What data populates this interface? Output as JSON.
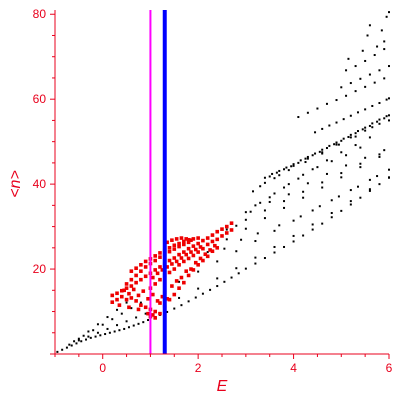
{
  "chart_data": {
    "type": "scatter",
    "xlabel": "E",
    "ylabel": "<n>",
    "xlim": [
      -1,
      6
    ],
    "ylim": [
      0,
      81
    ],
    "x_ticks": [
      "0",
      "2",
      "4",
      "6"
    ],
    "y_ticks": [
      "20",
      "40",
      "60",
      "80"
    ],
    "grid": false,
    "colors": {
      "axis": "#e8001c",
      "black_points": "#000000",
      "red_points": "#ee0000",
      "magenta_line": "#ff00ff",
      "blue_line": "#0000ff"
    },
    "vertical_lines": [
      {
        "x": 1.0,
        "color": "#ff00ff"
      },
      {
        "x": 1.3,
        "color": "#0000ff"
      }
    ],
    "black_series": [
      [
        -0.95,
        0.5
      ],
      [
        -0.85,
        1.0
      ],
      [
        -0.75,
        1.5
      ],
      [
        -0.65,
        2.0
      ],
      [
        -0.55,
        2.5
      ],
      [
        -0.45,
        3.0
      ],
      [
        -0.35,
        3.4
      ],
      [
        -0.25,
        3.8
      ],
      [
        -0.15,
        4.1
      ],
      [
        -0.05,
        4.4
      ],
      [
        0.05,
        4.7
      ],
      [
        0.15,
        5.0
      ],
      [
        0.25,
        5.3
      ],
      [
        0.35,
        5.6
      ],
      [
        0.45,
        5.9
      ],
      [
        0.55,
        6.3
      ],
      [
        0.65,
        6.7
      ],
      [
        0.75,
        7.1
      ],
      [
        0.85,
        7.5
      ],
      [
        0.95,
        8.0
      ],
      [
        1.1,
        8.7
      ],
      [
        1.2,
        9.2
      ],
      [
        1.35,
        9.9
      ],
      [
        1.5,
        10.7
      ],
      [
        1.65,
        11.5
      ],
      [
        1.8,
        12.4
      ],
      [
        1.95,
        13.3
      ],
      [
        2.1,
        14.2
      ],
      [
        2.25,
        15.1
      ],
      [
        2.4,
        16.0
      ],
      [
        2.55,
        17.0
      ],
      [
        2.7,
        18.0
      ],
      [
        2.85,
        19.0
      ],
      [
        3.0,
        20.1
      ],
      [
        3.2,
        21.3
      ],
      [
        3.4,
        22.6
      ],
      [
        3.6,
        23.9
      ],
      [
        3.8,
        25.2
      ],
      [
        4.0,
        26.5
      ],
      [
        4.2,
        27.9
      ],
      [
        4.4,
        29.3
      ],
      [
        4.6,
        30.7
      ],
      [
        4.8,
        32.2
      ],
      [
        5.0,
        33.7
      ],
      [
        5.2,
        35.2
      ],
      [
        5.4,
        36.8
      ],
      [
        5.6,
        38.4
      ],
      [
        5.8,
        40.0
      ],
      [
        6.0,
        41.5
      ],
      [
        -0.7,
        2.2
      ],
      [
        -0.5,
        3.2
      ],
      [
        -0.3,
        4.1
      ],
      [
        -0.1,
        5.0
      ],
      [
        0.1,
        5.9
      ],
      [
        0.3,
        6.8
      ],
      [
        0.5,
        7.7
      ],
      [
        0.7,
        8.6
      ],
      [
        0.9,
        9.5
      ],
      [
        1.3,
        11.5
      ],
      [
        1.6,
        13.2
      ],
      [
        2.0,
        15.4
      ],
      [
        2.4,
        17.8
      ],
      [
        2.8,
        20.2
      ],
      [
        3.2,
        22.7
      ],
      [
        3.6,
        25.2
      ],
      [
        4.0,
        27.8
      ],
      [
        4.4,
        30.5
      ],
      [
        4.8,
        33.2
      ],
      [
        5.2,
        36.0
      ],
      [
        5.6,
        38.8
      ],
      [
        6.0,
        41.6
      ],
      [
        -0.6,
        3.0
      ],
      [
        -0.4,
        4.3
      ],
      [
        -0.2,
        5.6
      ],
      [
        0.0,
        6.9
      ],
      [
        0.2,
        8.2
      ],
      [
        0.4,
        9.5
      ],
      [
        0.6,
        10.8
      ],
      [
        0.8,
        12.1
      ],
      [
        1.6,
        17.0
      ],
      [
        2.0,
        19.4
      ],
      [
        2.4,
        21.8
      ],
      [
        2.8,
        24.2
      ],
      [
        3.2,
        26.6
      ],
      [
        3.6,
        29.0
      ],
      [
        4.0,
        31.4
      ],
      [
        4.4,
        33.8
      ],
      [
        4.8,
        36.2
      ],
      [
        5.2,
        38.6
      ],
      [
        5.6,
        41.0
      ],
      [
        6.0,
        43.4
      ],
      [
        -0.5,
        3.6
      ],
      [
        -0.3,
        5.3
      ],
      [
        -0.1,
        7.0
      ],
      [
        0.1,
        8.7
      ],
      [
        0.3,
        10.4
      ],
      [
        0.5,
        12.1
      ],
      [
        2.2,
        24.0
      ],
      [
        2.6,
        27.0
      ],
      [
        3.0,
        29.5
      ],
      [
        3.4,
        32.0
      ],
      [
        3.8,
        34.4
      ],
      [
        4.2,
        36.8
      ],
      [
        4.6,
        39.2
      ],
      [
        5.0,
        41.6
      ],
      [
        5.4,
        44.0
      ],
      [
        5.8,
        46.4
      ],
      [
        2.6,
        29.3
      ],
      [
        3.0,
        31.6
      ],
      [
        3.4,
        33.8
      ],
      [
        3.8,
        36.0
      ],
      [
        4.2,
        38.2
      ],
      [
        4.6,
        40.4
      ],
      [
        5.0,
        42.6
      ],
      [
        5.4,
        44.8
      ],
      [
        5.8,
        47.0
      ],
      [
        2.8,
        30.2
      ],
      [
        3.1,
        33.5
      ],
      [
        3.5,
        35.8
      ],
      [
        3.9,
        37.6
      ],
      [
        4.3,
        40.2
      ],
      [
        4.7,
        42.4
      ],
      [
        5.1,
        44.4
      ],
      [
        5.5,
        46.2
      ],
      [
        5.9,
        48.0
      ],
      [
        3.0,
        33.4
      ],
      [
        3.3,
        35.6
      ],
      [
        3.6,
        37.8
      ],
      [
        3.9,
        40.0
      ],
      [
        4.2,
        42.2
      ],
      [
        4.5,
        44.0
      ],
      [
        4.8,
        45.4
      ],
      [
        5.1,
        46.8
      ],
      [
        5.4,
        48.6
      ],
      [
        3.2,
        35.0
      ],
      [
        3.5,
        36.9
      ],
      [
        3.8,
        39.2
      ],
      [
        4.1,
        41.3
      ],
      [
        4.4,
        43.5
      ],
      [
        4.7,
        45.6
      ],
      [
        5.0,
        47.5
      ],
      [
        5.3,
        49.2
      ],
      [
        5.6,
        51.0
      ],
      [
        2.55,
        24.8
      ],
      [
        2.9,
        26.9
      ],
      [
        3.25,
        28.4
      ],
      [
        3.7,
        30.3
      ],
      [
        4.15,
        32.4
      ],
      [
        4.55,
        34.8
      ],
      [
        4.95,
        37.1
      ],
      [
        5.35,
        39.4
      ],
      [
        5.75,
        41.9
      ],
      [
        3.15,
        38.3
      ],
      [
        3.4,
        40.3
      ],
      [
        3.7,
        42.1
      ],
      [
        4.0,
        44.3
      ],
      [
        4.3,
        46.0
      ],
      [
        4.6,
        47.5
      ],
      [
        4.9,
        49.3
      ],
      [
        5.2,
        51.0
      ],
      [
        5.5,
        52.6
      ],
      [
        5.8,
        54.2
      ],
      [
        3.3,
        39.5
      ],
      [
        3.6,
        41.4
      ],
      [
        3.9,
        43.3
      ],
      [
        4.25,
        45.2
      ],
      [
        4.6,
        47.2
      ],
      [
        4.95,
        49.3
      ],
      [
        5.3,
        51.2
      ],
      [
        5.65,
        53.4
      ],
      [
        6.0,
        55.0
      ],
      [
        3.4,
        41.5
      ],
      [
        3.55,
        42.4
      ],
      [
        3.7,
        43.1
      ],
      [
        3.85,
        43.9
      ],
      [
        4.0,
        44.7
      ],
      [
        4.15,
        45.6
      ],
      [
        4.3,
        46.4
      ],
      [
        4.45,
        47.2
      ],
      [
        4.6,
        48.1
      ],
      [
        4.75,
        49.0
      ],
      [
        4.9,
        49.8
      ],
      [
        5.05,
        50.7
      ],
      [
        5.2,
        51.6
      ],
      [
        5.35,
        52.5
      ],
      [
        5.5,
        53.3
      ],
      [
        5.65,
        54.3
      ],
      [
        5.8,
        55.2
      ],
      [
        5.95,
        56.0
      ],
      [
        4.1,
        55.8
      ],
      [
        4.3,
        56.8
      ],
      [
        4.5,
        57.8
      ],
      [
        4.7,
        58.9
      ],
      [
        4.9,
        59.8
      ],
      [
        5.1,
        60.8
      ],
      [
        5.3,
        61.9
      ],
      [
        5.5,
        62.9
      ],
      [
        5.7,
        63.9
      ],
      [
        5.9,
        64.9
      ],
      [
        5.0,
        62.8
      ],
      [
        5.2,
        63.8
      ],
      [
        5.4,
        64.8
      ],
      [
        5.6,
        65.8
      ],
      [
        5.8,
        66.8
      ],
      [
        6.0,
        67.8
      ],
      [
        5.1,
        66.8
      ],
      [
        5.3,
        67.8
      ],
      [
        5.5,
        69.0
      ],
      [
        5.7,
        70.4
      ],
      [
        5.9,
        71.8
      ],
      [
        5.15,
        69.5
      ],
      [
        5.45,
        71.4
      ],
      [
        5.75,
        72.4
      ],
      [
        5.9,
        73.6
      ],
      [
        5.55,
        75.0
      ],
      [
        5.85,
        76.2
      ],
      [
        5.6,
        77.4
      ],
      [
        5.95,
        79.4
      ],
      [
        6.0,
        80.5
      ],
      [
        3.5,
        41.8
      ],
      [
        3.65,
        42.7
      ],
      [
        3.8,
        43.5
      ],
      [
        3.95,
        44.2
      ],
      [
        4.1,
        45.0
      ],
      [
        4.25,
        46.0
      ],
      [
        4.4,
        46.8
      ],
      [
        4.55,
        47.6
      ],
      [
        4.7,
        48.5
      ],
      [
        4.85,
        49.4
      ],
      [
        5.0,
        50.2
      ],
      [
        5.15,
        51.1
      ],
      [
        5.3,
        52.0
      ],
      [
        5.45,
        52.9
      ],
      [
        5.6,
        53.7
      ],
      [
        5.75,
        54.7
      ],
      [
        5.9,
        55.5
      ],
      [
        6.0,
        56.2
      ],
      [
        4.45,
        52.2
      ],
      [
        4.6,
        53.0
      ],
      [
        4.75,
        53.8
      ],
      [
        4.9,
        54.5
      ],
      [
        5.05,
        55.3
      ],
      [
        5.2,
        56.1
      ],
      [
        5.35,
        56.9
      ],
      [
        5.5,
        57.6
      ],
      [
        5.65,
        58.4
      ],
      [
        5.8,
        59.1
      ],
      [
        5.95,
        59.9
      ],
      [
        6.0,
        60.2
      ]
    ],
    "red_series": [
      [
        0.2,
        13.8
      ],
      [
        0.3,
        14.3
      ],
      [
        0.4,
        14.9
      ],
      [
        0.5,
        15.5
      ],
      [
        0.6,
        16.0
      ],
      [
        0.7,
        16.8
      ],
      [
        0.8,
        17.5
      ],
      [
        0.9,
        18.3
      ],
      [
        1.0,
        19.0
      ],
      [
        1.1,
        19.8
      ],
      [
        1.2,
        20.5
      ],
      [
        1.3,
        21.2
      ],
      [
        1.4,
        22.0
      ],
      [
        1.5,
        22.6
      ],
      [
        1.6,
        23.4
      ],
      [
        1.7,
        24.0
      ],
      [
        1.8,
        24.8
      ],
      [
        1.9,
        25.4
      ],
      [
        2.0,
        26.0
      ],
      [
        2.1,
        26.7
      ],
      [
        2.2,
        27.3
      ],
      [
        2.3,
        28.0
      ],
      [
        2.4,
        28.8
      ],
      [
        2.5,
        29.4
      ],
      [
        2.6,
        30.0
      ],
      [
        2.7,
        30.8
      ],
      [
        0.5,
        16.5
      ],
      [
        0.6,
        17.5
      ],
      [
        0.7,
        18.5
      ],
      [
        0.8,
        19.5
      ],
      [
        0.9,
        20.5
      ],
      [
        1.0,
        21.3
      ],
      [
        1.1,
        22.0
      ],
      [
        1.2,
        22.8
      ],
      [
        1.3,
        23.5
      ],
      [
        1.4,
        24.1
      ],
      [
        1.5,
        24.7
      ],
      [
        1.6,
        25.3
      ],
      [
        1.7,
        25.8
      ],
      [
        1.8,
        26.3
      ],
      [
        0.6,
        19.5
      ],
      [
        0.7,
        20.2
      ],
      [
        0.8,
        21.0
      ],
      [
        0.9,
        21.8
      ],
      [
        1.0,
        22.4
      ],
      [
        1.1,
        23.1
      ],
      [
        1.2,
        23.8
      ],
      [
        1.3,
        24.4
      ],
      [
        1.4,
        25.0
      ],
      [
        1.5,
        25.6
      ],
      [
        1.6,
        26.0
      ],
      [
        1.7,
        26.5
      ],
      [
        1.8,
        26.9
      ],
      [
        1.9,
        27.1
      ],
      [
        2.0,
        27.3
      ],
      [
        1.35,
        26.3
      ],
      [
        1.45,
        26.8
      ],
      [
        1.55,
        27.1
      ],
      [
        1.65,
        27.3
      ],
      [
        1.75,
        27.1
      ],
      [
        1.85,
        26.8
      ],
      [
        0.4,
        13.5
      ],
      [
        0.5,
        12.8
      ],
      [
        0.6,
        13.2
      ],
      [
        0.7,
        12.5
      ],
      [
        0.8,
        11.5
      ],
      [
        0.9,
        11.0
      ],
      [
        1.0,
        10.5
      ],
      [
        1.1,
        10.0
      ],
      [
        1.2,
        9.5
      ],
      [
        1.3,
        11.2
      ],
      [
        1.4,
        12.8
      ],
      [
        1.5,
        14.0
      ],
      [
        1.6,
        15.5
      ],
      [
        1.7,
        16.8
      ],
      [
        1.8,
        18.5
      ],
      [
        1.9,
        19.8
      ],
      [
        2.0,
        21.0
      ],
      [
        2.1,
        22.0
      ],
      [
        2.2,
        23.0
      ],
      [
        2.3,
        24.2
      ],
      [
        2.4,
        25.0
      ],
      [
        0.45,
        15.0
      ],
      [
        0.65,
        15.2
      ],
      [
        0.85,
        14.8
      ],
      [
        1.05,
        14.0
      ],
      [
        1.25,
        13.5
      ],
      [
        1.45,
        16.0
      ],
      [
        1.65,
        18.0
      ],
      [
        1.85,
        20.0
      ],
      [
        2.05,
        22.5
      ],
      [
        2.25,
        24.5
      ],
      [
        0.55,
        14.2
      ],
      [
        0.75,
        13.8
      ],
      [
        0.95,
        13.0
      ],
      [
        1.15,
        12.5
      ],
      [
        1.35,
        13.0
      ],
      [
        1.55,
        17.2
      ],
      [
        1.75,
        19.5
      ],
      [
        1.95,
        21.5
      ],
      [
        2.15,
        23.5
      ],
      [
        2.35,
        25.5
      ],
      [
        1.0,
        15.5
      ],
      [
        1.1,
        16.5
      ],
      [
        1.2,
        17.5
      ],
      [
        1.3,
        18.5
      ],
      [
        1.4,
        19.2
      ],
      [
        1.5,
        20.0
      ],
      [
        1.6,
        21.0
      ],
      [
        1.7,
        21.8
      ],
      [
        1.8,
        22.5
      ],
      [
        1.9,
        23.2
      ],
      [
        2.0,
        24.0
      ],
      [
        2.1,
        24.8
      ],
      [
        1.05,
        18.0
      ],
      [
        1.15,
        19.0
      ],
      [
        1.25,
        19.8
      ],
      [
        1.35,
        20.5
      ],
      [
        1.45,
        21.2
      ],
      [
        1.55,
        21.8
      ],
      [
        1.65,
        22.6
      ],
      [
        1.75,
        23.4
      ],
      [
        1.85,
        24.0
      ],
      [
        1.95,
        24.6
      ],
      [
        2.05,
        25.2
      ],
      [
        0.95,
        9.5
      ],
      [
        1.0,
        8.8
      ],
      [
        1.05,
        9.2
      ],
      [
        1.1,
        8.5
      ],
      [
        1.2,
        12.0
      ],
      [
        1.3,
        14.5
      ],
      [
        0.3,
        12.8
      ],
      [
        0.2,
        12.2
      ],
      [
        0.35,
        11.5
      ],
      [
        0.55,
        11.0
      ],
      [
        0.75,
        10.5
      ],
      [
        2.2,
        25.8
      ],
      [
        2.3,
        26.5
      ],
      [
        2.4,
        27.0
      ],
      [
        2.5,
        27.8
      ],
      [
        2.6,
        28.5
      ],
      [
        2.7,
        29.2
      ]
    ]
  }
}
